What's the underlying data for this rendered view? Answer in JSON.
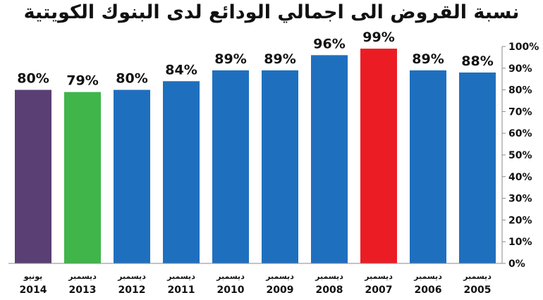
{
  "chart_data": {
    "type": "bar",
    "title": "نسبة القروض الى اجمالي الودائع لدى البنوك الكويتية",
    "categories": [
      {
        "month": "يونيو",
        "year": "2014"
      },
      {
        "month": "ديسمبر",
        "year": "2013"
      },
      {
        "month": "ديسمبر",
        "year": "2012"
      },
      {
        "month": "ديسمبر",
        "year": "2011"
      },
      {
        "month": "ديسمبر",
        "year": "2010"
      },
      {
        "month": "ديسمبر",
        "year": "2009"
      },
      {
        "month": "ديسمبر",
        "year": "2008"
      },
      {
        "month": "ديسمبر",
        "year": "2007"
      },
      {
        "month": "ديسمبر",
        "year": "2006"
      },
      {
        "month": "ديسمبر",
        "year": "2005"
      }
    ],
    "values": [
      80,
      79,
      80,
      84,
      89,
      89,
      96,
      99,
      89,
      88
    ],
    "value_labels": [
      "80%",
      "79%",
      "80%",
      "84%",
      "89%",
      "89%",
      "96%",
      "99%",
      "89%",
      "88%"
    ],
    "colors": [
      "#5a3f74",
      "#3fb54a",
      "#1f6fbf",
      "#1f6fbf",
      "#1f6fbf",
      "#1f6fbf",
      "#1f6fbf",
      "#ec1c24",
      "#1f6fbf",
      "#1f6fbf"
    ],
    "y_ticks": [
      "0%",
      "10%",
      "20%",
      "30%",
      "40%",
      "50%",
      "60%",
      "70%",
      "80%",
      "90%",
      "100%"
    ],
    "ylim": [
      0,
      100
    ],
    "y_axis_side": "right",
    "grid": false,
    "legend": "none"
  }
}
